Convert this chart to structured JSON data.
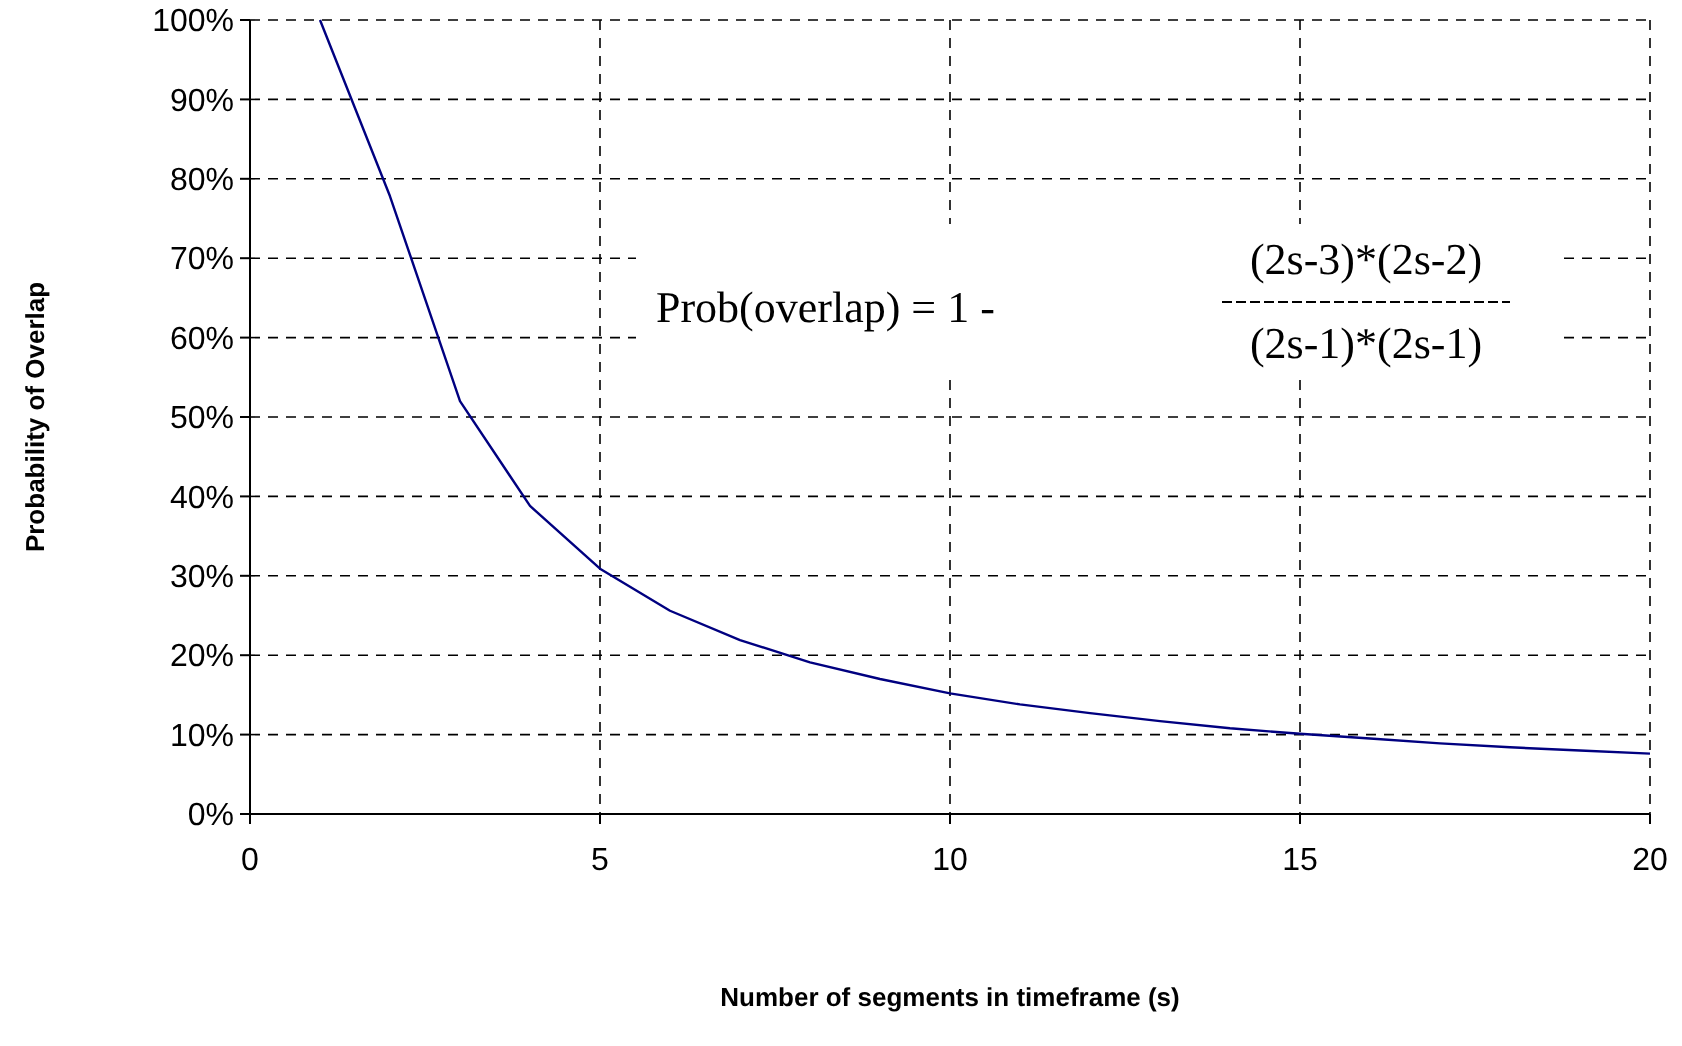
{
  "chart_data": {
    "type": "line",
    "xlabel": "Number of segments in timeframe (s)",
    "ylabel": "Probability of Overlap",
    "x": [
      1,
      2,
      3,
      4,
      5,
      6,
      7,
      8,
      9,
      10,
      11,
      12,
      13,
      14,
      15,
      16,
      17,
      18,
      19,
      20
    ],
    "series": [
      {
        "color": "#000080",
        "values": [
          100,
          77.8,
          52,
          38.8,
          30.9,
          25.6,
          21.9,
          19.1,
          17,
          15.2,
          13.8,
          12.7,
          11.7,
          10.8,
          10.1,
          9.5,
          8.9,
          8.4,
          8,
          7.6
        ]
      }
    ],
    "xlim": [
      0,
      20
    ],
    "xticks": [
      0,
      5,
      10,
      15,
      20
    ],
    "ylim": [
      0,
      100
    ],
    "yticks": [
      {
        "value": 0,
        "label": "0%"
      },
      {
        "value": 10,
        "label": "10%"
      },
      {
        "value": 20,
        "label": "20%"
      },
      {
        "value": 30,
        "label": "30%"
      },
      {
        "value": 40,
        "label": "40%"
      },
      {
        "value": 50,
        "label": "50%"
      },
      {
        "value": 60,
        "label": "60%"
      },
      {
        "value": 70,
        "label": "70%"
      },
      {
        "value": 80,
        "label": "80%"
      },
      {
        "value": 90,
        "label": "90%"
      },
      {
        "value": 100,
        "label": "100%"
      }
    ],
    "grid": true,
    "line_style": "solid",
    "marker": "none",
    "annotations": [
      "Prob(overlap) = 1 -",
      "(2s-3)*(2s-2)",
      "(2s-1)*(2s-1)"
    ]
  }
}
